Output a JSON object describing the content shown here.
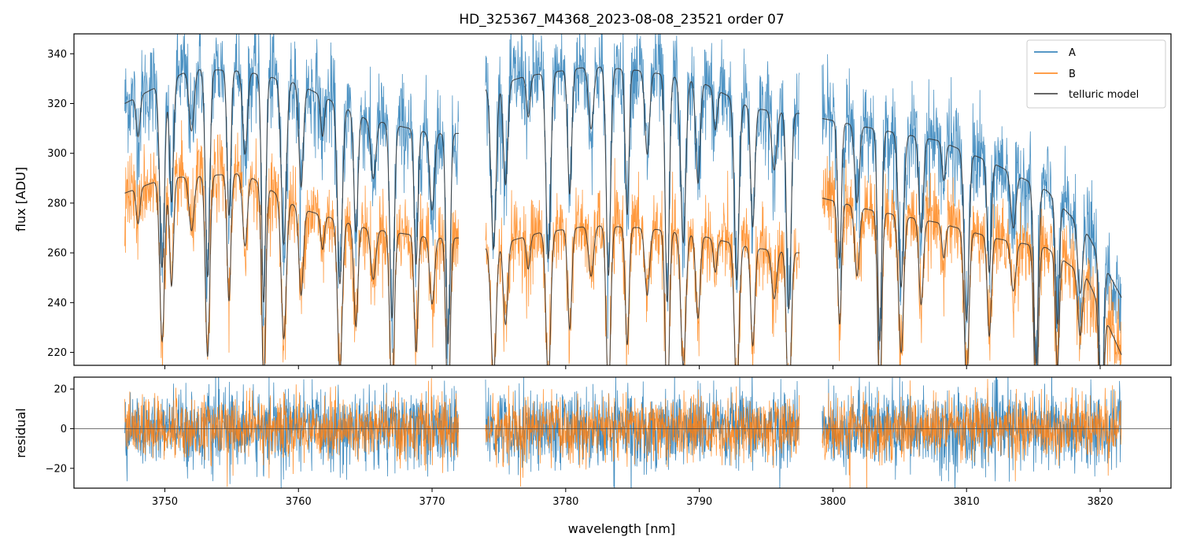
{
  "chart_data": [
    {
      "type": "line",
      "title": "HD_325367_M4368_2023-08-08_23521  order 07",
      "xlabel": "",
      "ylabel": "flux [ADU]",
      "xlim": [
        3743.2,
        3825.3
      ],
      "ylim": [
        214.8,
        348.0
      ],
      "yticks": [
        "220",
        "240",
        "260",
        "280",
        "300",
        "320",
        "340"
      ],
      "legend_position": "top-right",
      "segments": [
        [
          3747.0,
          3772.0
        ],
        [
          3774.0,
          3797.5
        ],
        [
          3799.2,
          3821.6
        ]
      ],
      "series": [
        {
          "name": "A",
          "color": "#1f77b4",
          "style": "noisy spectrum",
          "continuum_points": [
            [
              3747.0,
              320
            ],
            [
              3752.0,
              334
            ],
            [
              3756.0,
              333
            ],
            [
              3760.0,
              328
            ],
            [
              3765.0,
              314
            ],
            [
              3770.0,
              308
            ],
            [
              3772.0,
              308
            ],
            [
              3774.0,
              326
            ],
            [
              3777.0,
              331
            ],
            [
              3782.0,
              335
            ],
            [
              3786.0,
              333
            ],
            [
              3790.0,
              329
            ],
            [
              3794.0,
              318
            ],
            [
              3797.5,
              316
            ],
            [
              3799.2,
              314
            ],
            [
              3803.0,
              310
            ],
            [
              3808.0,
              305
            ],
            [
              3812.0,
              296
            ],
            [
              3816.0,
              285
            ],
            [
              3819.0,
              268
            ],
            [
              3821.6,
              242
            ]
          ]
        },
        {
          "name": "B",
          "color": "#ff7f0e",
          "style": "noisy spectrum",
          "continuum_points": [
            [
              3747.0,
              284
            ],
            [
              3750.0,
              290
            ],
            [
              3756.0,
              292
            ],
            [
              3760.0,
              278
            ],
            [
              3765.0,
              270
            ],
            [
              3770.0,
              266
            ],
            [
              3772.0,
              266
            ],
            [
              3774.0,
              262
            ],
            [
              3778.0,
              268
            ],
            [
              3782.0,
              271
            ],
            [
              3786.0,
              270
            ],
            [
              3790.0,
              267
            ],
            [
              3794.0,
              262
            ],
            [
              3797.5,
              260
            ],
            [
              3799.2,
              282
            ],
            [
              3803.0,
              277
            ],
            [
              3808.0,
              272
            ],
            [
              3812.0,
              266
            ],
            [
              3816.0,
              262
            ],
            [
              3819.0,
              250
            ],
            [
              3821.6,
              219
            ]
          ]
        },
        {
          "name": "telluric model",
          "color": "#333333",
          "style": "model line with absorption dips"
        }
      ],
      "absorption_lines": [
        3748.0,
        3749.8,
        3750.5,
        3752.0,
        3753.2,
        3754.8,
        3756.0,
        3757.4,
        3758.9,
        3760.2,
        3761.8,
        3763.1,
        3764.3,
        3765.6,
        3767.0,
        3768.8,
        3770.0,
        3771.2,
        3774.6,
        3775.5,
        3777.2,
        3778.7,
        3780.3,
        3781.9,
        3783.2,
        3784.6,
        3786.1,
        3787.6,
        3788.8,
        3789.9,
        3791.2,
        3792.8,
        3794.0,
        3795.6,
        3796.7,
        3800.5,
        3801.8,
        3803.5,
        3805.1,
        3806.6,
        3808.3,
        3810.0,
        3811.7,
        3813.5,
        3815.2,
        3816.8,
        3818.5,
        3820.1
      ]
    },
    {
      "type": "line",
      "title": "",
      "xlabel": "wavelength [nm]",
      "ylabel": "residual",
      "xlim": [
        3743.2,
        3825.3
      ],
      "ylim": [
        -30,
        26
      ],
      "xticks": [
        "3750",
        "3760",
        "3770",
        "3780",
        "3790",
        "3800",
        "3810",
        "3820"
      ],
      "yticks": [
        "−20",
        "0",
        "20"
      ],
      "zero_line": 0,
      "series": [
        {
          "name": "A",
          "color": "#1f77b4",
          "spread": 10
        },
        {
          "name": "B",
          "color": "#ff7f0e",
          "spread": 8
        }
      ]
    }
  ]
}
